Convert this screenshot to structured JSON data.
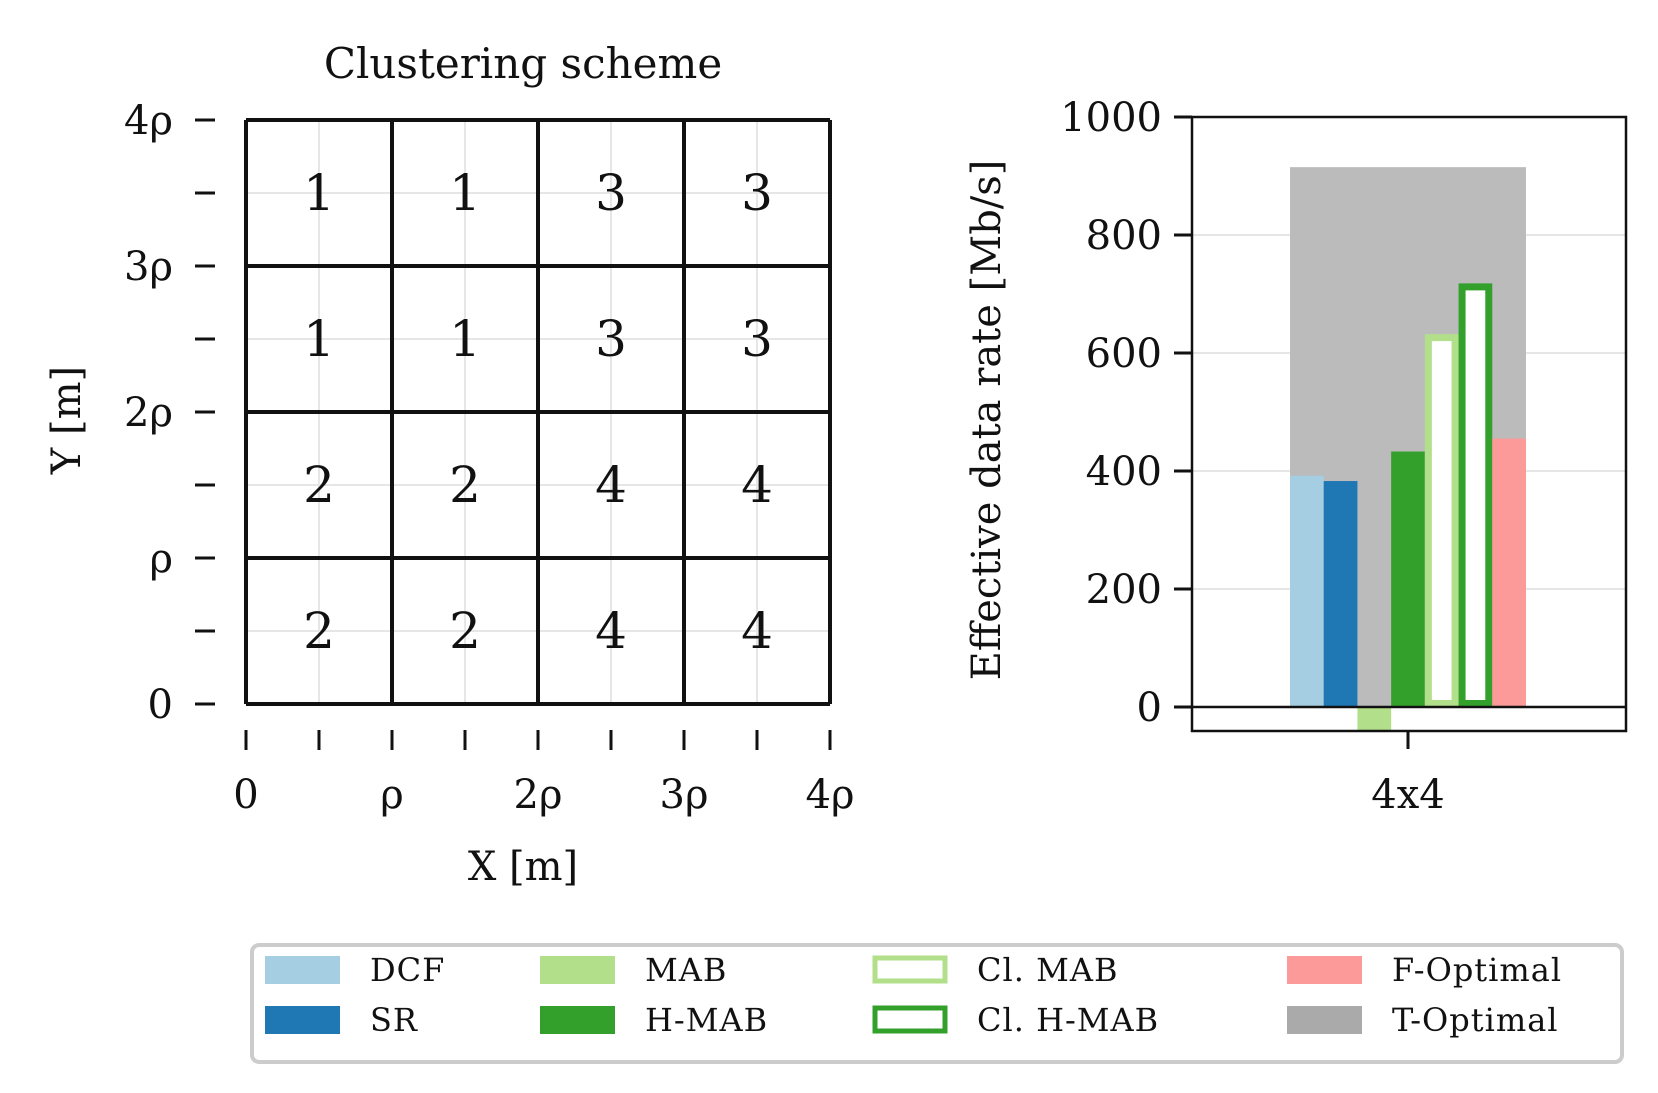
{
  "chart_data": [
    {
      "type": "heatmap",
      "title": "Clustering scheme",
      "xlabel": "X [m]",
      "ylabel": "Y [m]",
      "x_tick_labels": [
        "0",
        "",
        "ρ",
        "",
        "2ρ",
        "",
        "3ρ",
        "",
        "4ρ"
      ],
      "y_tick_labels": [
        "0",
        "",
        "ρ",
        "",
        "2ρ",
        "",
        "3ρ",
        "",
        "4ρ"
      ],
      "xlim": [
        0,
        4
      ],
      "ylim": [
        0,
        4
      ],
      "grid": true,
      "rows_top_to_bottom": [
        [
          "1",
          "1",
          "3",
          "3"
        ],
        [
          "1",
          "1",
          "3",
          "3"
        ],
        [
          "2",
          "2",
          "4",
          "4"
        ],
        [
          "2",
          "2",
          "4",
          "4"
        ]
      ]
    },
    {
      "type": "bar",
      "title": "",
      "xlabel": "",
      "ylabel": "Effective data rate [Mb/s]",
      "categories": [
        "4x4"
      ],
      "ylim": [
        -40,
        1000
      ],
      "y_ticks": [
        0,
        200,
        400,
        600,
        800,
        1000
      ],
      "grid": true,
      "background_series": {
        "name": "T-Optimal",
        "value": 915,
        "color": "#bbbbbb"
      },
      "series": [
        {
          "name": "DCF",
          "values": [
            392
          ],
          "color": "#a6cee3",
          "style": "filled"
        },
        {
          "name": "SR",
          "values": [
            383
          ],
          "color": "#1f78b4",
          "style": "filled"
        },
        {
          "name": "MAB",
          "values": [
            -40
          ],
          "color": "#b2df8a",
          "style": "filled"
        },
        {
          "name": "H-MAB",
          "values": [
            433
          ],
          "color": "#33a02c",
          "style": "filled"
        },
        {
          "name": "Cl. MAB",
          "values": [
            632
          ],
          "color": "#b2df8a",
          "style": "outline"
        },
        {
          "name": "Cl. H-MAB",
          "values": [
            718
          ],
          "color": "#33a02c",
          "style": "outline"
        },
        {
          "name": "F-Optimal",
          "values": [
            455
          ],
          "color": "#fb9a99",
          "style": "filled"
        }
      ]
    }
  ],
  "legend": {
    "placement": "bottom",
    "entries": [
      {
        "label": "DCF",
        "color": "#a6cee3",
        "style": "filled"
      },
      {
        "label": "SR",
        "color": "#1f78b4",
        "style": "filled"
      },
      {
        "label": "MAB",
        "color": "#b2df8a",
        "style": "filled"
      },
      {
        "label": "H-MAB",
        "color": "#33a02c",
        "style": "filled"
      },
      {
        "label": "Cl. MAB",
        "color": "#b2df8a",
        "style": "outline"
      },
      {
        "label": "Cl. H-MAB",
        "color": "#33a02c",
        "style": "outline"
      },
      {
        "label": "F-Optimal",
        "color": "#fb9a99",
        "style": "filled"
      },
      {
        "label": "T-Optimal",
        "color": "#aaaaaa",
        "style": "filled"
      }
    ]
  }
}
